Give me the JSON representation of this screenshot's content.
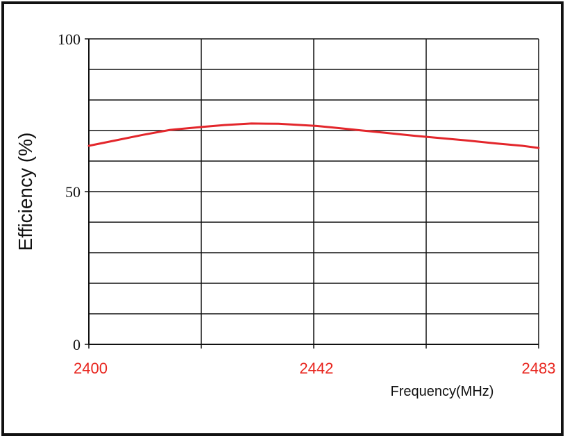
{
  "chart_data": {
    "type": "line",
    "ylabel": "Efficiency (%)",
    "xlabel": "Frequency(MHz)",
    "xlim": [
      2400,
      2483
    ],
    "ylim": [
      0,
      100
    ],
    "x_ticks": [
      2400,
      2442,
      2483
    ],
    "y_ticks": [
      0,
      50,
      100
    ],
    "grid": true,
    "colors": {
      "line": "#e3262b",
      "x_tick_labels": "#e8261f",
      "grid": "#111111"
    },
    "series": [
      {
        "x": [
          2400,
          2405,
          2410,
          2415,
          2421,
          2425,
          2430,
          2435,
          2442,
          2445,
          2450,
          2455,
          2460,
          2465,
          2470,
          2475,
          2480,
          2483
        ],
        "y": [
          65.0,
          66.8,
          68.6,
          70.2,
          71.2,
          71.8,
          72.3,
          72.2,
          71.5,
          71.0,
          70.1,
          69.2,
          68.3,
          67.5,
          66.7,
          65.8,
          65.0,
          64.3
        ]
      }
    ]
  }
}
